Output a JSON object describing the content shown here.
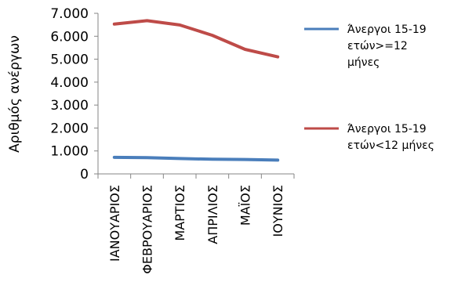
{
  "chart_data": {
    "type": "line",
    "ylabel": "Αριθμός ανέργων",
    "categories": [
      "ΙΑΝΟΥΑΡΙΟΣ",
      "ΦΕΒΡΟΥΑΡΙΟΣ",
      "ΜΑΡΤΙΟΣ",
      "ΑΠΡΙΛΙΟΣ",
      "ΜΑΪΟΣ",
      "ΙΟΥΝΙΟΣ"
    ],
    "ylim": [
      0,
      7000
    ],
    "yticks": [
      "0",
      "1.000",
      "2.000",
      "3.000",
      "4.000",
      "5.000",
      "6.000",
      "7.000"
    ],
    "legend_position": "right",
    "series": [
      {
        "name_lines": [
          "Άνεργοι 15-19",
          "ετών>=12",
          "μήνες"
        ],
        "color": "#4a7ebb",
        "values": [
          720,
          710,
          670,
          640,
          630,
          600
        ]
      },
      {
        "name_lines": [
          "Άνεργοι 15-19",
          "ετών<12 μήνες"
        ],
        "color": "#be4b48",
        "values": [
          6530,
          6680,
          6490,
          6040,
          5430,
          5100
        ]
      }
    ]
  }
}
